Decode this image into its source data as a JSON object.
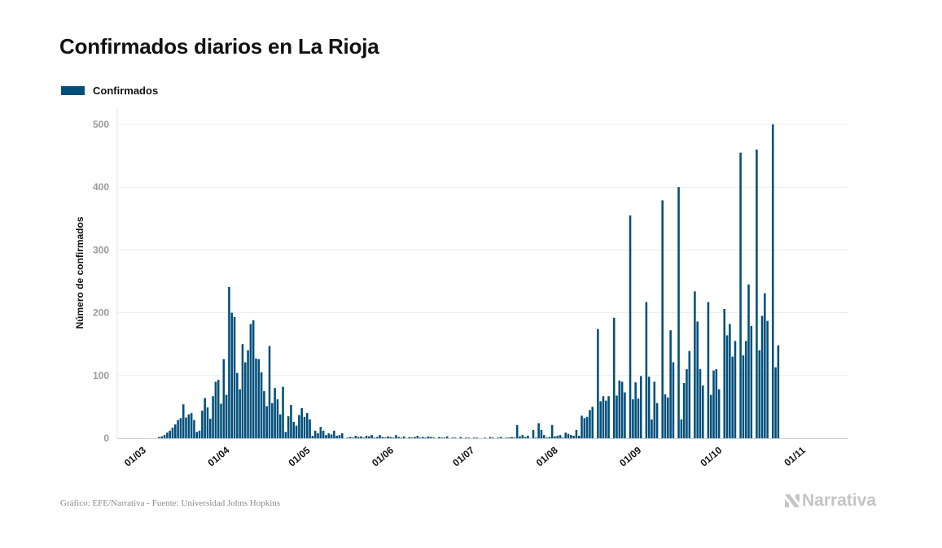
{
  "header": {
    "title": "Confirmados diarios en La Rioja"
  },
  "legend": {
    "items": [
      {
        "label": "Confirmados",
        "color": "#004f7a"
      }
    ]
  },
  "footer": {
    "source": "Gráfico: EFE/Narrativa - Fuente: Universidad Johns Hopkins"
  },
  "brand": {
    "name": "Narrativa",
    "icon": "narrativa-logo-icon"
  },
  "chart_data": {
    "type": "bar",
    "ylabel": "Número de confirmados",
    "xlabel": "",
    "ylim": [
      0,
      500
    ],
    "yticks": [
      0,
      100,
      200,
      300,
      400,
      500
    ],
    "grid": true,
    "legend_position": "top-left",
    "bar_color": "#004f7a",
    "x_start": "2020-02-24",
    "xtick_dates": [
      "2020-03-01",
      "2020-04-01",
      "2020-05-01",
      "2020-06-01",
      "2020-07-01",
      "2020-08-01",
      "2020-09-01",
      "2020-10-01",
      "2020-11-01"
    ],
    "xtick_labels": [
      "01/03",
      "01/04",
      "01/05",
      "01/06",
      "01/07",
      "01/08",
      "01/09",
      "01/10",
      "01/11"
    ],
    "series": [
      {
        "name": "Confirmados",
        "values": [
          0,
          0,
          0,
          0,
          0,
          0,
          0,
          0,
          0,
          0,
          0,
          0,
          2,
          3,
          5,
          9,
          12,
          17,
          22,
          29,
          32,
          54,
          33,
          38,
          40,
          29,
          10,
          12,
          44,
          64,
          49,
          31,
          67,
          90,
          93,
          55,
          126,
          69,
          241,
          200,
          193,
          104,
          78,
          150,
          121,
          140,
          182,
          188,
          127,
          126,
          105,
          75,
          51,
          147,
          56,
          80,
          62,
          38,
          82,
          10,
          35,
          53,
          26,
          20,
          37,
          48,
          34,
          40,
          30,
          4,
          12,
          8,
          18,
          12,
          5,
          8,
          6,
          12,
          4,
          5,
          8,
          0,
          1,
          2,
          1,
          4,
          2,
          3,
          1,
          4,
          3,
          5,
          1,
          2,
          5,
          2,
          1,
          3,
          2,
          1,
          5,
          2,
          1,
          3,
          0,
          2,
          1,
          2,
          4,
          1,
          2,
          1,
          3,
          2,
          1,
          0,
          2,
          1,
          1,
          3,
          0,
          1,
          1,
          0,
          2,
          0,
          1,
          1,
          0,
          1,
          1,
          0,
          0,
          1,
          0,
          2,
          1,
          0,
          1,
          2,
          0,
          1,
          1,
          2,
          1,
          21,
          3,
          5,
          2,
          4,
          0,
          13,
          1,
          24,
          13,
          5,
          1,
          2,
          21,
          3,
          4,
          5,
          1,
          9,
          7,
          5,
          4,
          13,
          4,
          36,
          32,
          34,
          45,
          50,
          0,
          174,
          59,
          67,
          60,
          67,
          0,
          192,
          68,
          92,
          90,
          73,
          0,
          355,
          62,
          89,
          63,
          99,
          0,
          217,
          98,
          30,
          90,
          56,
          0,
          379,
          70,
          65,
          172,
          121,
          0,
          400,
          30,
          88,
          110,
          139,
          0,
          234,
          186,
          110,
          84,
          0,
          217,
          69,
          108,
          110,
          78,
          0,
          206,
          164,
          182,
          130,
          155,
          0,
          455,
          132,
          155,
          245,
          179,
          0,
          460,
          140,
          195,
          231,
          187,
          0,
          500,
          113,
          148
        ]
      }
    ]
  }
}
